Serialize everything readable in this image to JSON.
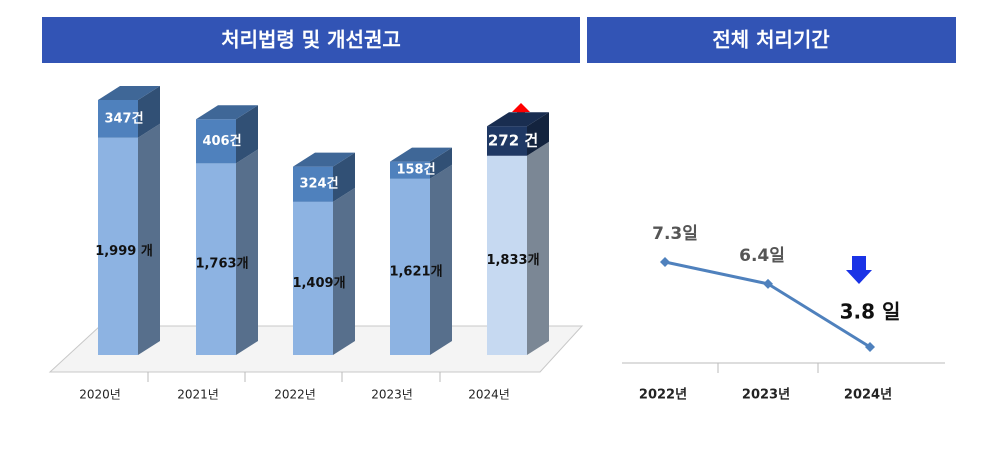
{
  "charts": [
    {
      "chart_data": {
        "type": "bar3d-stacked",
        "title": "처리법령 및 개선권고",
        "categories": [
          "2020년",
          "2021년",
          "2022년",
          "2023년",
          "2024년"
        ],
        "series": [
          {
            "values": [
              1999,
              1763,
              1409,
              1621,
              1833
            ],
            "value_labels": [
              "1,999 개",
              "1,763개",
              "1,409개",
              "1,621개",
              "1,833개"
            ],
            "colors": [
              "#8db3e2",
              "#8db3e2",
              "#8db3e2",
              "#8db3e2",
              "#c6d9f1"
            ]
          },
          {
            "values": [
              347,
              406,
              324,
              158,
              272
            ],
            "value_labels": [
              "347건",
              "406건",
              "324건",
              "158건",
              "272 건"
            ],
            "colors": [
              "#4f81bd",
              "#4f81bd",
              "#4f81bd",
              "#4f81bd",
              "#1f3864"
            ]
          }
        ]
      }
    },
    {
      "chart_data": {
        "type": "line",
        "title": "전체 처리기간",
        "categories": [
          "2022년",
          "2023년",
          "2024년"
        ],
        "values": [
          7.3,
          6.4,
          3.8
        ],
        "value_labels": [
          "7.3일",
          "6.4일",
          "3.8 일"
        ],
        "color": "#4f81bd"
      }
    }
  ]
}
